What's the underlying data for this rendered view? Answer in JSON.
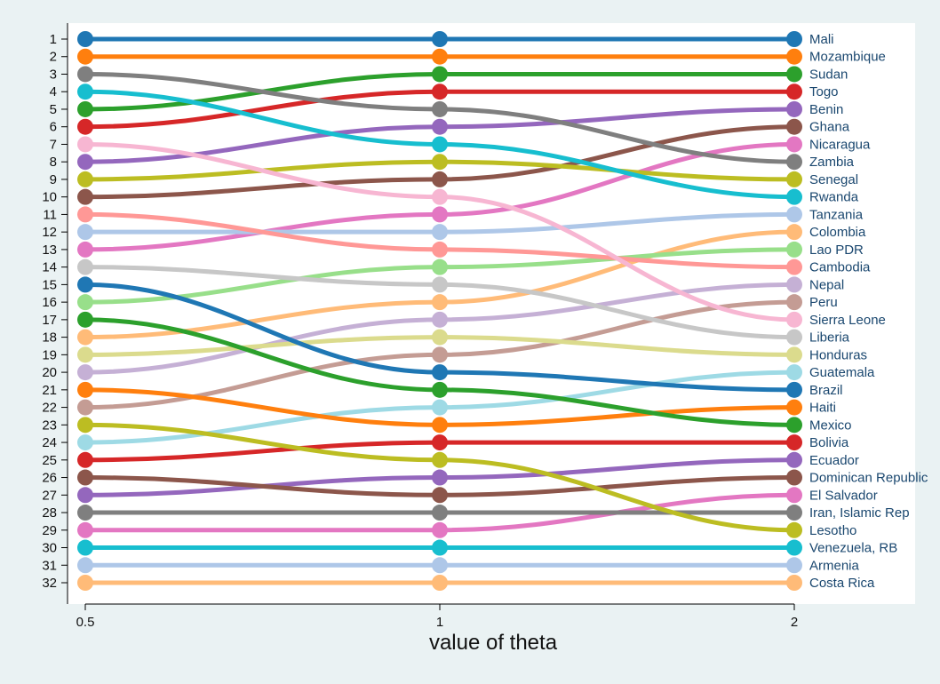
{
  "chart_data": {
    "type": "line",
    "chart_kind": "bump",
    "title": "",
    "xlabel": "value of theta",
    "ylabel": "",
    "x": [
      "0.5",
      "1",
      "2"
    ],
    "x_tick_labels": [
      "0.5",
      "1",
      "2"
    ],
    "y_tick_labels": [
      "1",
      "2",
      "3",
      "4",
      "5",
      "6",
      "7",
      "8",
      "9",
      "10",
      "11",
      "12",
      "13",
      "14",
      "15",
      "16",
      "17",
      "18",
      "19",
      "20",
      "21",
      "22",
      "23",
      "24",
      "25",
      "26",
      "27",
      "28",
      "29",
      "30",
      "31",
      "32"
    ],
    "ylim": [
      1,
      32
    ],
    "y_inverted": true,
    "grid": false,
    "legend": "labels at right end of each line",
    "series": [
      {
        "name": "Mali",
        "ranks": [
          1,
          1,
          1
        ],
        "color": "#1f77b4"
      },
      {
        "name": "Mozambique",
        "ranks": [
          2,
          2,
          2
        ],
        "color": "#ff7f0e"
      },
      {
        "name": "Sudan",
        "ranks": [
          5,
          3,
          3
        ],
        "color": "#2ca02c"
      },
      {
        "name": "Togo",
        "ranks": [
          6,
          4,
          4
        ],
        "color": "#d62728"
      },
      {
        "name": "Benin",
        "ranks": [
          8,
          6,
          5
        ],
        "color": "#9467bd"
      },
      {
        "name": "Ghana",
        "ranks": [
          10,
          9,
          6
        ],
        "color": "#8c564b"
      },
      {
        "name": "Nicaragua",
        "ranks": [
          13,
          11,
          7
        ],
        "color": "#e377c2"
      },
      {
        "name": "Zambia",
        "ranks": [
          3,
          5,
          8
        ],
        "color": "#7f7f7f"
      },
      {
        "name": "Senegal",
        "ranks": [
          9,
          8,
          9
        ],
        "color": "#bcbd22"
      },
      {
        "name": "Rwanda",
        "ranks": [
          4,
          7,
          10
        ],
        "color": "#17becf"
      },
      {
        "name": "Tanzania",
        "ranks": [
          12,
          12,
          11
        ],
        "color": "#aec7e8"
      },
      {
        "name": "Colombia",
        "ranks": [
          18,
          16,
          12
        ],
        "color": "#ffbb78"
      },
      {
        "name": "Lao PDR",
        "ranks": [
          16,
          14,
          13
        ],
        "color": "#98df8a"
      },
      {
        "name": "Cambodia",
        "ranks": [
          11,
          13,
          14
        ],
        "color": "#ff9896"
      },
      {
        "name": "Nepal",
        "ranks": [
          20,
          17,
          15
        ],
        "color": "#c5b0d5"
      },
      {
        "name": "Peru",
        "ranks": [
          22,
          19,
          16
        ],
        "color": "#c49c94"
      },
      {
        "name": "Sierra Leone",
        "ranks": [
          7,
          10,
          17
        ],
        "color": "#f7b6d2"
      },
      {
        "name": "Liberia",
        "ranks": [
          14,
          15,
          18
        ],
        "color": "#c7c7c7"
      },
      {
        "name": "Honduras",
        "ranks": [
          19,
          18,
          19
        ],
        "color": "#dbdb8d"
      },
      {
        "name": "Guatemala",
        "ranks": [
          24,
          22,
          20
        ],
        "color": "#9edae5"
      },
      {
        "name": "Brazil",
        "ranks": [
          15,
          20,
          21
        ],
        "color": "#1f77b4"
      },
      {
        "name": "Haiti",
        "ranks": [
          21,
          23,
          22
        ],
        "color": "#ff7f0e"
      },
      {
        "name": "Mexico",
        "ranks": [
          17,
          21,
          23
        ],
        "color": "#2ca02c"
      },
      {
        "name": "Bolivia",
        "ranks": [
          25,
          24,
          24
        ],
        "color": "#d62728"
      },
      {
        "name": "Ecuador",
        "ranks": [
          27,
          26,
          25
        ],
        "color": "#9467bd"
      },
      {
        "name": "Dominican Republic",
        "ranks": [
          26,
          27,
          26
        ],
        "color": "#8c564b"
      },
      {
        "name": "El Salvador",
        "ranks": [
          29,
          29,
          27
        ],
        "color": "#e377c2"
      },
      {
        "name": "Iran, Islamic Rep",
        "ranks": [
          28,
          28,
          28
        ],
        "color": "#7f7f7f"
      },
      {
        "name": "Lesotho",
        "ranks": [
          23,
          25,
          29
        ],
        "color": "#bcbd22"
      },
      {
        "name": "Venezuela, RB",
        "ranks": [
          30,
          30,
          30
        ],
        "color": "#17becf"
      },
      {
        "name": "Armenia",
        "ranks": [
          31,
          31,
          31
        ],
        "color": "#aec7e8"
      },
      {
        "name": "Costa Rica",
        "ranks": [
          32,
          32,
          32
        ],
        "color": "#ffbb78"
      }
    ]
  }
}
